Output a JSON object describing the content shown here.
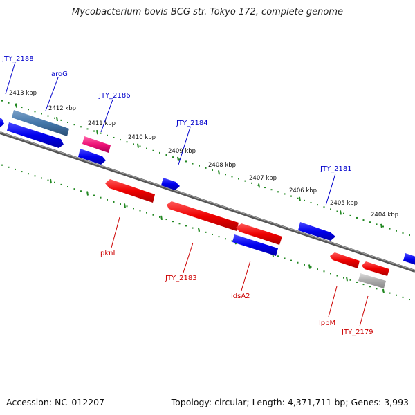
{
  "title": "Mycobacterium bovis BCG str. Tokyo 172, complete genome",
  "footer": {
    "accession": "Accession: NC_012207",
    "summary": "Topology: circular; Length: 4,371,711 bp; Genes: 3,993"
  },
  "colors": {
    "forward": "#0000ee",
    "reverse": "#ee0000",
    "rna": "#ee1177",
    "highlight": "#4477aa",
    "pseudo": "#aaaaaa",
    "backbone": "#777777",
    "ticks": "#228822",
    "label_forward": "#0000cc",
    "label_reverse": "#cc0000"
  },
  "ticks": [
    "2413 kbp",
    "2412 kbp",
    "2411 kbp",
    "2410 kbp",
    "2409 kbp",
    "2408 kbp",
    "2407 kbp",
    "2406 kbp",
    "2405 kbp",
    "2404 kbp"
  ],
  "gene_labels": {
    "forward": [
      "JTY_2188",
      "aroG",
      "JTY_2186",
      "JTY_2184",
      "JTY_2181"
    ],
    "reverse": [
      "pknL",
      "JTY_2183",
      "idsA2",
      "lppM",
      "JTY_2179"
    ]
  }
}
